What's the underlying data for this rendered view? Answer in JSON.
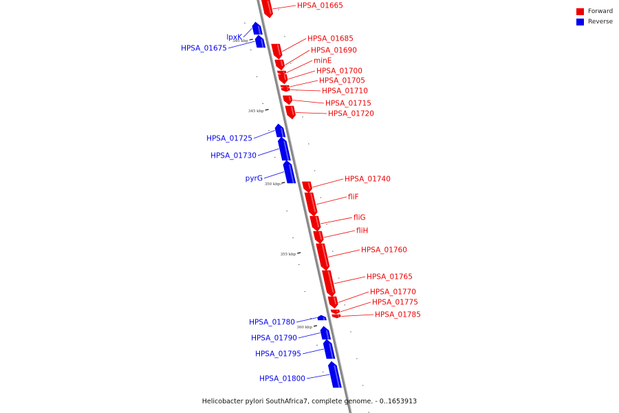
{
  "colors": {
    "forward": "#ee0000",
    "reverse": "#0000ee",
    "backbone": "#888888"
  },
  "legend": [
    {
      "label": "Forward",
      "color": "#ee0000"
    },
    {
      "label": "Reverse",
      "color": "#0000ee"
    }
  ],
  "caption": "Helicobacter pylori SouthAfrica7, complete genome. - 0..1653913",
  "scale_labels": [
    "340 kbp",
    "345 kbp",
    "350 kbp",
    "355 kbp",
    "360 kbp"
  ],
  "genes": [
    {
      "name": "HPSA_01665",
      "strand": "forward"
    },
    {
      "name": "lpxK",
      "strand": "reverse"
    },
    {
      "name": "HPSA_01675",
      "strand": "reverse"
    },
    {
      "name": "HPSA_01685",
      "strand": "forward"
    },
    {
      "name": "HPSA_01690",
      "strand": "forward"
    },
    {
      "name": "minE",
      "strand": "forward"
    },
    {
      "name": "HPSA_01700",
      "strand": "forward"
    },
    {
      "name": "HPSA_01705",
      "strand": "forward"
    },
    {
      "name": "HPSA_01710",
      "strand": "forward"
    },
    {
      "name": "HPSA_01715",
      "strand": "forward"
    },
    {
      "name": "HPSA_01720",
      "strand": "forward"
    },
    {
      "name": "HPSA_01725",
      "strand": "reverse"
    },
    {
      "name": "HPSA_01730",
      "strand": "reverse"
    },
    {
      "name": "pyrG",
      "strand": "reverse"
    },
    {
      "name": "HPSA_01740",
      "strand": "forward"
    },
    {
      "name": "fliF",
      "strand": "forward"
    },
    {
      "name": "fliG",
      "strand": "forward"
    },
    {
      "name": "fliH",
      "strand": "forward"
    },
    {
      "name": "HPSA_01760",
      "strand": "forward"
    },
    {
      "name": "HPSA_01765",
      "strand": "forward"
    },
    {
      "name": "HPSA_01770",
      "strand": "forward"
    },
    {
      "name": "HPSA_01775",
      "strand": "forward"
    },
    {
      "name": "HPSA_01785",
      "strand": "forward"
    },
    {
      "name": "HPSA_01780",
      "strand": "reverse"
    },
    {
      "name": "HPSA_01790",
      "strand": "reverse"
    },
    {
      "name": "HPSA_01795",
      "strand": "reverse"
    },
    {
      "name": "HPSA_01800",
      "strand": "reverse"
    }
  ]
}
